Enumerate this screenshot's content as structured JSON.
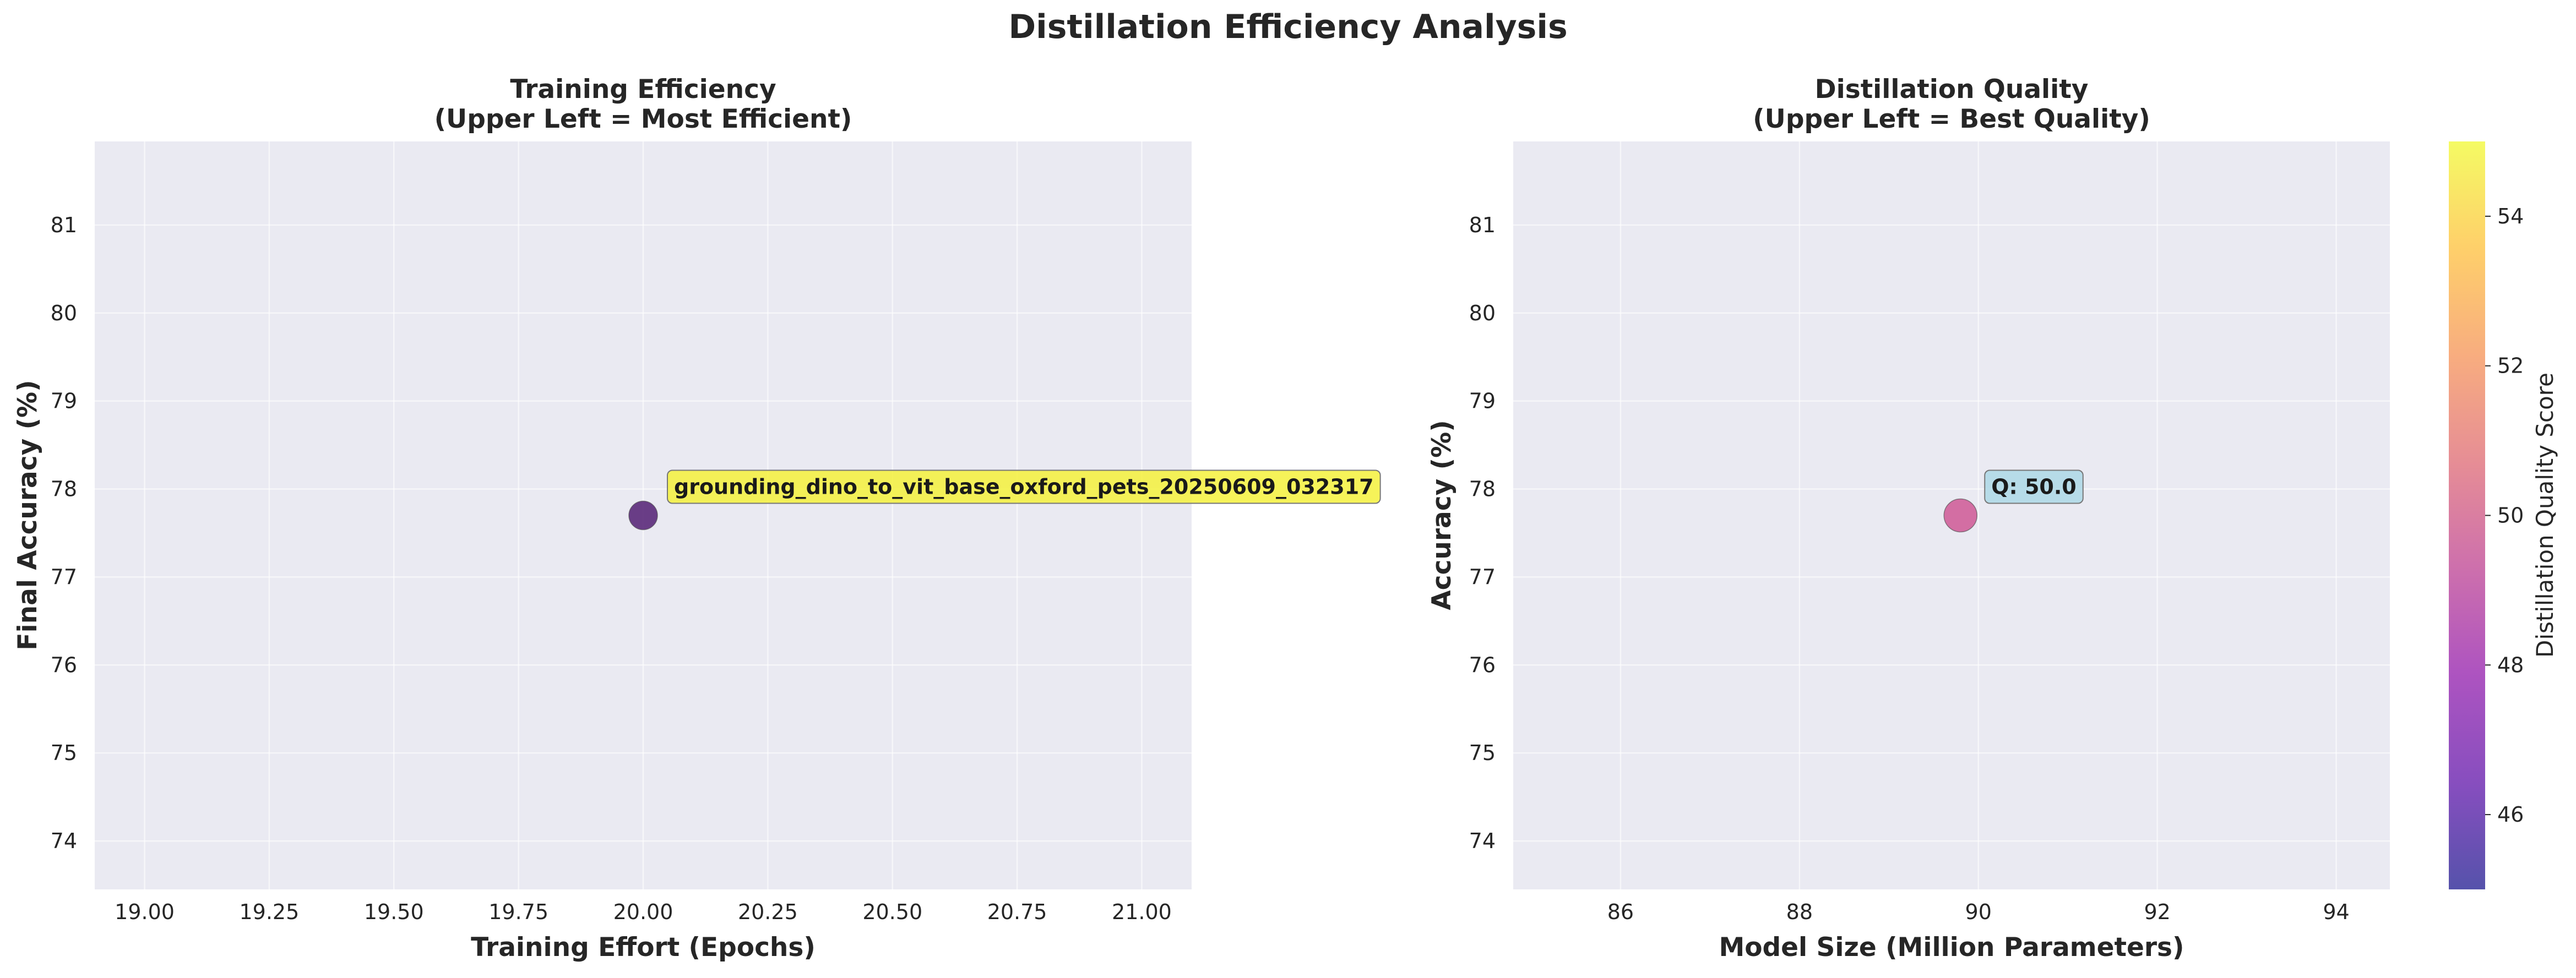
{
  "figure": {
    "title": "Distillation Efficiency Analysis"
  },
  "chart_data": [
    {
      "type": "scatter",
      "title": "Training Efficiency",
      "subtitle": "(Upper Left = Most Efficient)",
      "xlabel": "Training Effort (Epochs)",
      "ylabel": "Final Accuracy (%)",
      "xlim": [
        18.9,
        21.1
      ],
      "ylim": [
        73.45,
        81.95
      ],
      "xticks": [
        "19.00",
        "19.25",
        "19.50",
        "19.75",
        "20.00",
        "20.25",
        "20.50",
        "20.75",
        "21.00"
      ],
      "yticks": [
        "74",
        "75",
        "76",
        "77",
        "78",
        "79",
        "80",
        "81"
      ],
      "grid": true,
      "point_color": "#5b2a7a",
      "points": [
        {
          "x": 20.0,
          "y": 77.7,
          "label": "grounding_dino_to_vit_base_oxford_pets_20250609_032317",
          "label_bg": "#f4f13c"
        }
      ]
    },
    {
      "type": "scatter",
      "title": "Distillation Quality",
      "subtitle": "(Upper Left = Best Quality)",
      "xlabel": "Model Size (Million Parameters)",
      "ylabel": "Accuracy (%)",
      "xlim": [
        84.8,
        94.6
      ],
      "ylim": [
        73.45,
        81.95
      ],
      "xticks": [
        "86",
        "88",
        "90",
        "92",
        "94"
      ],
      "yticks": [
        "74",
        "75",
        "76",
        "77",
        "78",
        "79",
        "80",
        "81"
      ],
      "grid": true,
      "colormap": "plasma",
      "colorbar": {
        "label": "Distillation Quality Score",
        "range": [
          45,
          55
        ],
        "ticks": [
          "46",
          "48",
          "50",
          "52",
          "54"
        ]
      },
      "points": [
        {
          "x": 89.8,
          "y": 77.7,
          "quality": 50.0,
          "label": "Q: 50.0",
          "label_bg": "#add8e6",
          "color": "#d0619a"
        }
      ]
    }
  ]
}
